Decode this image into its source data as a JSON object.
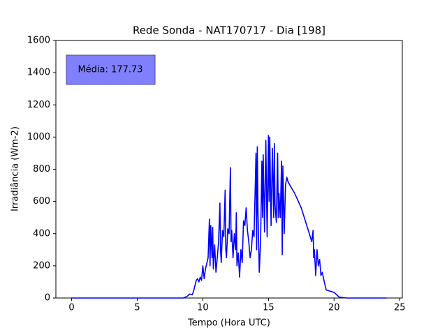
{
  "chart_data": {
    "type": "line",
    "title": "Rede Sonda - NAT170717 - Dia [198]",
    "x_label": "Tempo (Hora UTC)",
    "y_label": "Irradiância (Wm-2)",
    "annotation": "Média: 177.73",
    "xlim": [
      -1.2,
      25.2
    ],
    "ylim": [
      0,
      1600
    ],
    "xticks": [
      0,
      5,
      10,
      15,
      20,
      25
    ],
    "yticks": [
      0,
      200,
      400,
      600,
      800,
      1000,
      1200,
      1400,
      1600
    ],
    "series": [
      {
        "color": "#0000ff",
        "x": [
          0,
          8.5,
          8.8,
          9.0,
          9.2,
          9.3,
          9.5,
          9.6,
          9.7,
          9.8,
          9.9,
          10.0,
          10.1,
          10.2,
          10.4,
          10.5,
          10.55,
          10.6,
          10.7,
          10.75,
          10.8,
          10.9,
          11.0,
          11.1,
          11.2,
          11.3,
          11.35,
          11.4,
          11.5,
          11.6,
          11.7,
          11.75,
          11.8,
          11.9,
          12.0,
          12.1,
          12.15,
          12.2,
          12.3,
          12.4,
          12.5,
          12.55,
          12.6,
          12.7,
          12.8,
          12.9,
          13.0,
          13.1,
          13.2,
          13.3,
          13.4,
          13.5,
          13.6,
          13.7,
          13.8,
          13.9,
          14.0,
          14.05,
          14.1,
          14.15,
          14.2,
          14.3,
          14.4,
          14.5,
          14.55,
          14.6,
          14.7,
          14.8,
          14.9,
          15.0,
          15.05,
          15.1,
          15.2,
          15.3,
          15.4,
          15.45,
          15.5,
          15.6,
          15.7,
          15.75,
          15.8,
          15.9,
          16.0,
          16.05,
          16.1,
          16.2,
          16.3,
          16.4,
          16.5,
          17.0,
          17.5,
          18.0,
          18.3,
          18.4,
          18.45,
          18.5,
          18.6,
          18.7,
          18.8,
          18.9,
          19.0,
          19.1,
          19.2,
          19.4,
          20.0,
          20.4,
          21.0,
          24.0
        ],
        "values": [
          0,
          0,
          10,
          25,
          20,
          45,
          110,
          120,
          100,
          130,
          110,
          200,
          120,
          180,
          250,
          490,
          200,
          450,
          250,
          440,
          180,
          330,
          160,
          250,
          350,
          590,
          300,
          220,
          420,
          380,
          670,
          300,
          250,
          430,
          400,
          810,
          350,
          420,
          250,
          400,
          300,
          530,
          200,
          280,
          130,
          300,
          220,
          480,
          450,
          560,
          420,
          350,
          250,
          300,
          420,
          380,
          720,
          900,
          300,
          940,
          550,
          160,
          350,
          850,
          500,
          890,
          410,
          980,
          380,
          1010,
          600,
          1000,
          450,
          930,
          500,
          960,
          580,
          470,
          900,
          500,
          650,
          500,
          850,
          270,
          820,
          400,
          700,
          750,
          720,
          650,
          560,
          430,
          350,
          420,
          250,
          300,
          140,
          300,
          200,
          240,
          140,
          160,
          120,
          50,
          35,
          5,
          0,
          0
        ]
      }
    ]
  }
}
